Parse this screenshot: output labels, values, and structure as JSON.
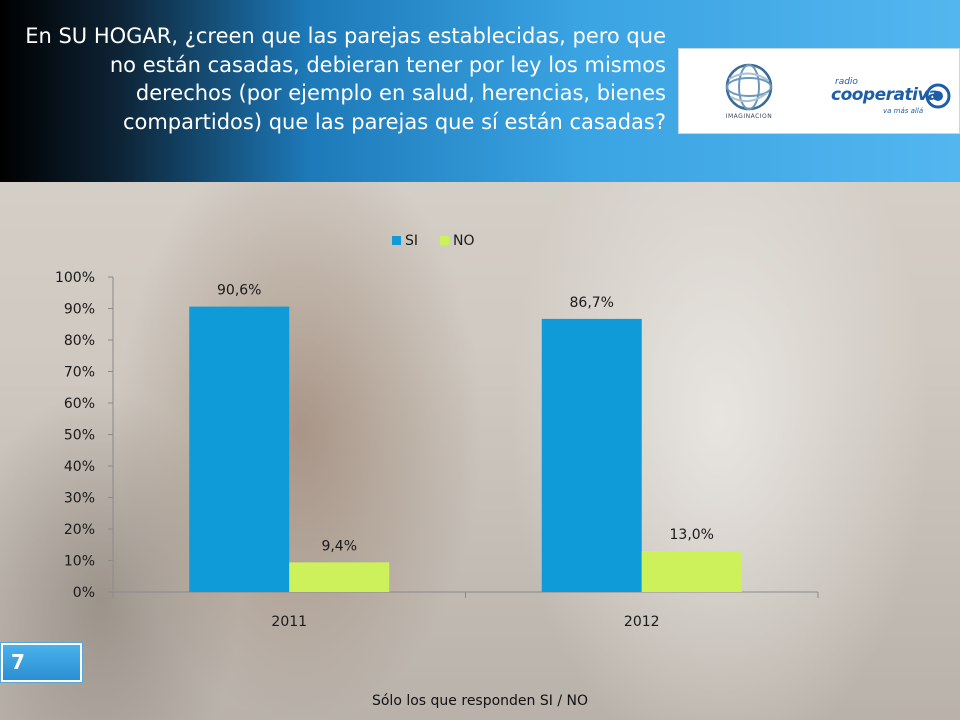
{
  "question": "En SU HOGAR, ¿creen que las parejas establecidas, pero que no están casadas, debieran tener por ley los mismos derechos (por ejemplo en salud, herencias, bienes compartidos) que las parejas que sí están casadas?",
  "logos": {
    "imaginacion": "IMAGINACION",
    "cooperativa_top": "radio",
    "cooperativa_main": "cooperativa",
    "cooperativa_tag": "va más allá"
  },
  "page_number": "7",
  "footnote": "Sólo los que responden SI / NO",
  "colors": {
    "si": "#0e9bd7",
    "no": "#ccf15b",
    "header_dark": "#000000",
    "header_light": "#53b6ef"
  },
  "chart_data": {
    "type": "bar",
    "categories": [
      "2011",
      "2012"
    ],
    "series": [
      {
        "name": "SI",
        "values": [
          90.6,
          86.7
        ],
        "labels": [
          "90,6%",
          "86,7%"
        ]
      },
      {
        "name": "NO",
        "values": [
          9.4,
          13.0
        ],
        "labels": [
          "9,4%",
          "13,0%"
        ]
      }
    ],
    "ylim": [
      0,
      100
    ],
    "yticks": [
      "0%",
      "10%",
      "20%",
      "30%",
      "40%",
      "50%",
      "60%",
      "70%",
      "80%",
      "90%",
      "100%"
    ],
    "legend_position": "top-center",
    "grid": false
  }
}
